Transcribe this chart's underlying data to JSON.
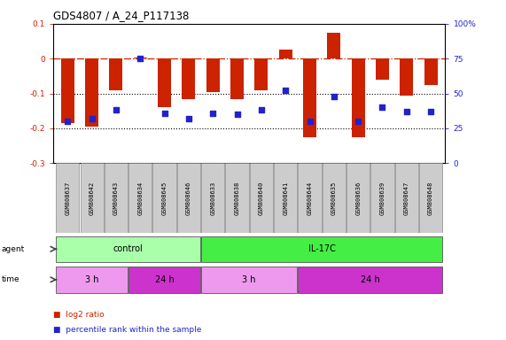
{
  "title": "GDS4807 / A_24_P117138",
  "samples": [
    "GSM808637",
    "GSM808642",
    "GSM808643",
    "GSM808634",
    "GSM808645",
    "GSM808646",
    "GSM808633",
    "GSM808638",
    "GSM808640",
    "GSM808641",
    "GSM808644",
    "GSM808635",
    "GSM808636",
    "GSM808639",
    "GSM808647",
    "GSM808648"
  ],
  "log2_ratio": [
    -0.185,
    -0.195,
    -0.09,
    0.002,
    -0.14,
    -0.115,
    -0.095,
    -0.115,
    -0.09,
    0.025,
    -0.225,
    0.075,
    -0.225,
    -0.06,
    -0.105,
    -0.075
  ],
  "percentile_rank": [
    30,
    32,
    38,
    75,
    36,
    32,
    36,
    35,
    38,
    52,
    30,
    48,
    30,
    40,
    37,
    37
  ],
  "ylim_left": [
    -0.3,
    0.1
  ],
  "ylim_right": [
    0,
    100
  ],
  "bar_color": "#cc2200",
  "dot_color": "#2222cc",
  "agent_groups": [
    {
      "label": "control",
      "start": 0,
      "end": 5,
      "color": "#aaffaa"
    },
    {
      "label": "IL-17C",
      "start": 6,
      "end": 15,
      "color": "#44ee44"
    }
  ],
  "time_groups": [
    {
      "label": "3 h",
      "start": 0,
      "end": 2,
      "color": "#ee99ee"
    },
    {
      "label": "24 h",
      "start": 3,
      "end": 5,
      "color": "#cc33cc"
    },
    {
      "label": "3 h",
      "start": 6,
      "end": 9,
      "color": "#ee99ee"
    },
    {
      "label": "24 h",
      "start": 10,
      "end": 15,
      "color": "#cc33cc"
    }
  ],
  "bar_color_hex": "#cc2200",
  "dot_color_hex": "#2222cc",
  "left_tick_color": "#cc2200",
  "right_tick_color": "#2222cc",
  "bg_label": "#cccccc"
}
